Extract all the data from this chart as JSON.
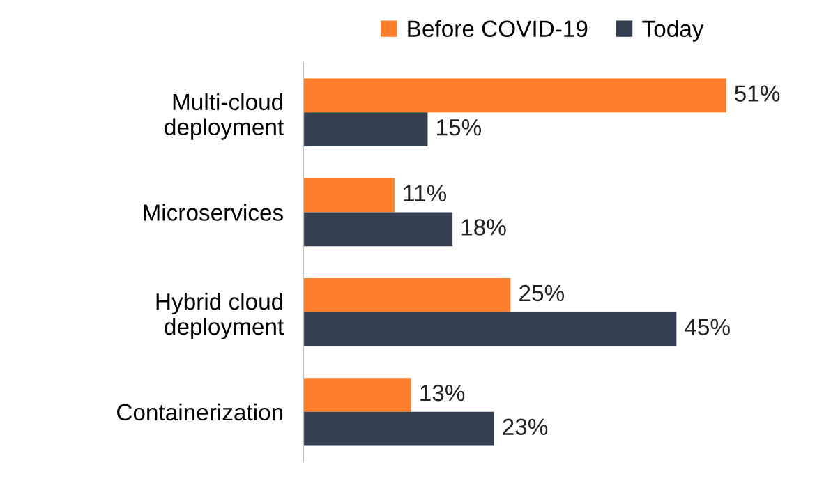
{
  "chart_data": {
    "type": "bar",
    "orientation": "horizontal",
    "legend": "top",
    "categories": [
      "Multi-cloud\ndeployment",
      "Microservices",
      "Hybrid cloud\ndeployment",
      "Containerization"
    ],
    "series": [
      {
        "name": "Before COVID-19",
        "color": "#fd7e2b",
        "values": [
          51,
          11,
          25,
          13
        ],
        "value_labels": [
          "51%",
          "11%",
          "25%",
          "13%"
        ]
      },
      {
        "name": "Today",
        "color": "#333f50",
        "values": [
          15,
          18,
          45,
          23
        ],
        "value_labels": [
          "15%",
          "18%",
          "45%",
          "23%"
        ]
      }
    ]
  }
}
